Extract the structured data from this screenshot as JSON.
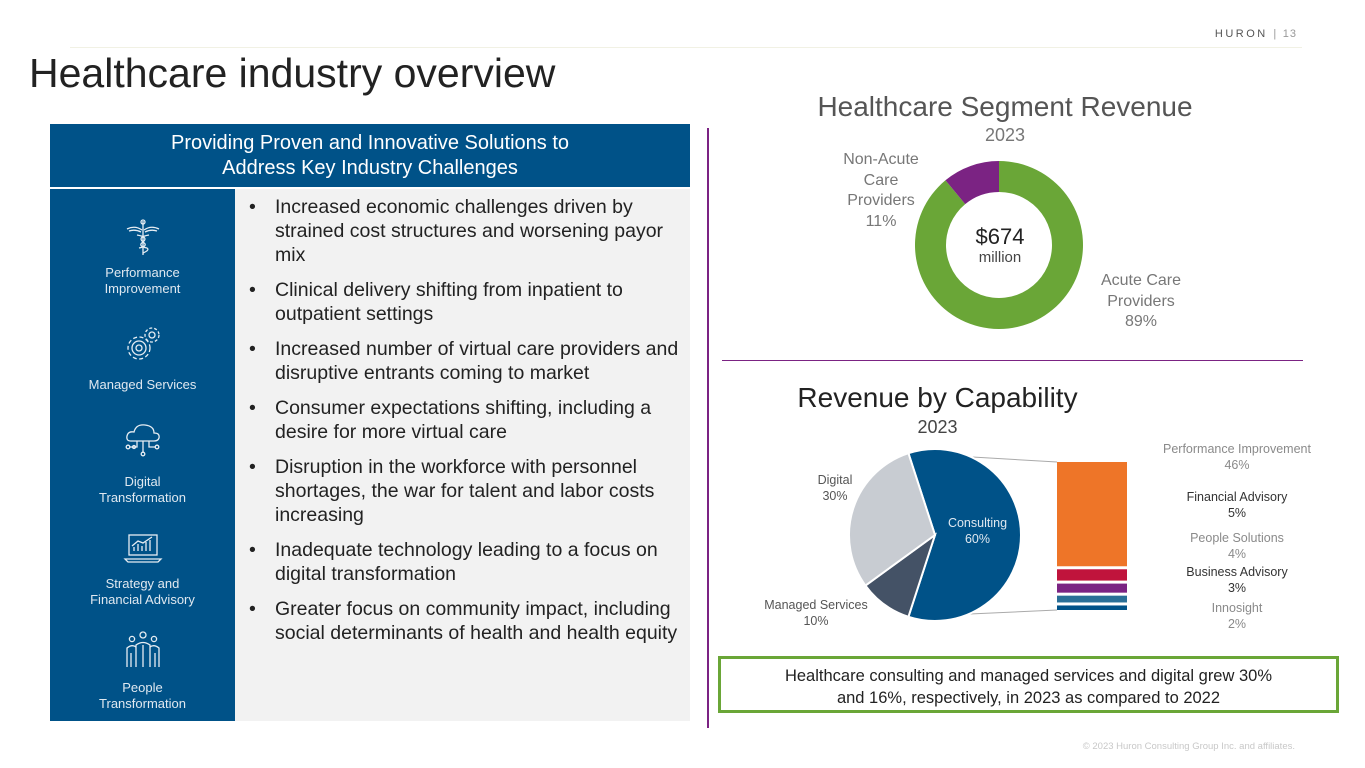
{
  "header": {
    "brand": "HURON",
    "separator": "|",
    "page_number": "13",
    "title": "Healthcare industry overview"
  },
  "left_panel": {
    "heading_line1": "Providing Proven and Innovative Solutions to",
    "heading_line2": "Address Key Industry Challenges",
    "sidebar": [
      {
        "icon": "caduceus-icon",
        "label_line1": "Performance",
        "label_line2": "Improvement"
      },
      {
        "icon": "gears-icon",
        "label_line1": "Managed  Services",
        "label_line2": ""
      },
      {
        "icon": "cloud-network-icon",
        "label_line1": "Digital",
        "label_line2": "Transformation"
      },
      {
        "icon": "laptop-chart-icon",
        "label_line1": "Strategy and",
        "label_line2": "Financial  Advisory"
      },
      {
        "icon": "people-icon",
        "label_line1": "People",
        "label_line2": "Transformation"
      }
    ],
    "bullets": [
      "Increased economic challenges driven by strained cost structures and worsening payor mix",
      "Clinical delivery shifting from inpatient to outpatient settings",
      "Increased number of virtual care providers and disruptive entrants coming to market",
      "Consumer expectations shifting, including a desire for more virtual care",
      "Disruption in the workforce with personnel shortages, the war for talent and labor costs increasing",
      "Inadequate technology leading to a focus on digital transformation",
      "Greater focus on community impact, including social determinants of health and health equity"
    ]
  },
  "chart_data": [
    {
      "type": "pie",
      "variant": "donut",
      "title": "Healthcare Segment Revenue",
      "subtitle": "2023",
      "center_value": "$674",
      "center_unit": "million",
      "slices": [
        {
          "label_line1": "Acute Care",
          "label_line2": "Providers",
          "label_line3": "",
          "value": 89,
          "pct_label": "89%",
          "color": "#6aa637"
        },
        {
          "label_line1": "Non-Acute",
          "label_line2": "Care",
          "label_line3": "Providers",
          "value": 11,
          "pct_label": "11%",
          "color": "#7b2383"
        }
      ]
    },
    {
      "type": "pie",
      "variant": "pie-of-bar",
      "title": "Revenue by Capability",
      "subtitle": "2023",
      "slices": [
        {
          "label": "Consulting",
          "value": 60,
          "pct_label": "60%",
          "color": "#005288"
        },
        {
          "label": "Managed  Services",
          "value": 10,
          "pct_label": "10%",
          "color": "#445266"
        },
        {
          "label": "Digital",
          "value": 30,
          "pct_label": "30%",
          "color": "#c8ccd2"
        }
      ],
      "breakdown_of": "Consulting",
      "breakdown": [
        {
          "label": "Performance  Improvement",
          "value": 46,
          "pct_label": "46%",
          "color": "#ee7528"
        },
        {
          "label": "Financial  Advisory",
          "value": 5,
          "pct_label": "5%",
          "color": "#c0143c"
        },
        {
          "label": "People  Solutions",
          "value": 4,
          "pct_label": "4%",
          "color": "#7b2383"
        },
        {
          "label": "Business  Advisory",
          "value": 3,
          "pct_label": "3%",
          "color": "#2a6f97"
        },
        {
          "label": "Innosight",
          "value": 2,
          "pct_label": "2%",
          "color": "#005288"
        }
      ]
    }
  ],
  "callout": {
    "line1": "Healthcare consulting and managed services and digital grew 30%",
    "line2": "and 16%, respectively, in 2023 as compared to 2022"
  },
  "footer": {
    "copyright": "© 2023 Huron  Consulting Group  Inc. and affiliates."
  }
}
